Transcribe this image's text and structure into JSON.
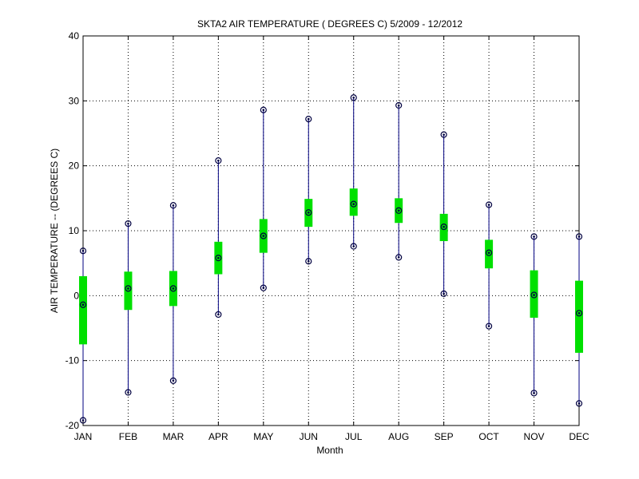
{
  "chart_data": {
    "type": "box",
    "title": "SKTA2  AIR TEMPERATURE ( DEGREES C) 5/2009 - 12/2012",
    "xlabel": "Month",
    "ylabel": "AIR TEMPERATURE -- (DEGREES C)",
    "ylim": [
      -20,
      40
    ],
    "yticks": [
      -20,
      -10,
      0,
      10,
      20,
      30,
      40
    ],
    "grid": true,
    "categories": [
      "JAN",
      "FEB",
      "MAR",
      "APR",
      "MAY",
      "JUN",
      "JUL",
      "AUG",
      "SEP",
      "OCT",
      "NOV",
      "DEC"
    ],
    "series": [
      {
        "values": [
          {
            "min": -19.2,
            "q1": -7.5,
            "median": -1.4,
            "q3": 3.0,
            "max": 6.9
          },
          {
            "min": -14.9,
            "q1": -2.2,
            "median": 1.1,
            "q3": 3.7,
            "max": 11.1
          },
          {
            "min": -13.1,
            "q1": -1.6,
            "median": 1.1,
            "q3": 3.8,
            "max": 13.9
          },
          {
            "min": -2.9,
            "q1": 3.3,
            "median": 5.8,
            "q3": 8.3,
            "max": 20.8
          },
          {
            "min": 1.2,
            "q1": 6.6,
            "median": 9.2,
            "q3": 11.8,
            "max": 28.6
          },
          {
            "min": 5.3,
            "q1": 10.6,
            "median": 12.8,
            "q3": 14.9,
            "max": 27.2
          },
          {
            "min": 7.6,
            "q1": 12.3,
            "median": 14.1,
            "q3": 16.5,
            "max": 30.5
          },
          {
            "min": 5.9,
            "q1": 11.2,
            "median": 13.1,
            "q3": 15.0,
            "max": 29.3
          },
          {
            "min": 0.3,
            "q1": 8.4,
            "median": 10.6,
            "q3": 12.6,
            "max": 24.8
          },
          {
            "min": -4.7,
            "q1": 4.2,
            "median": 6.6,
            "q3": 8.6,
            "max": 14.0
          },
          {
            "min": -15.0,
            "q1": -3.4,
            "median": 0.1,
            "q3": 3.9,
            "max": 9.1
          },
          {
            "min": -16.6,
            "q1": -8.8,
            "median": -2.7,
            "q3": 2.3,
            "max": 9.1
          }
        ]
      }
    ],
    "colors": {
      "whisker": "#000080",
      "box": "#00e000",
      "marker": "#000040",
      "grid": "#000000"
    }
  }
}
